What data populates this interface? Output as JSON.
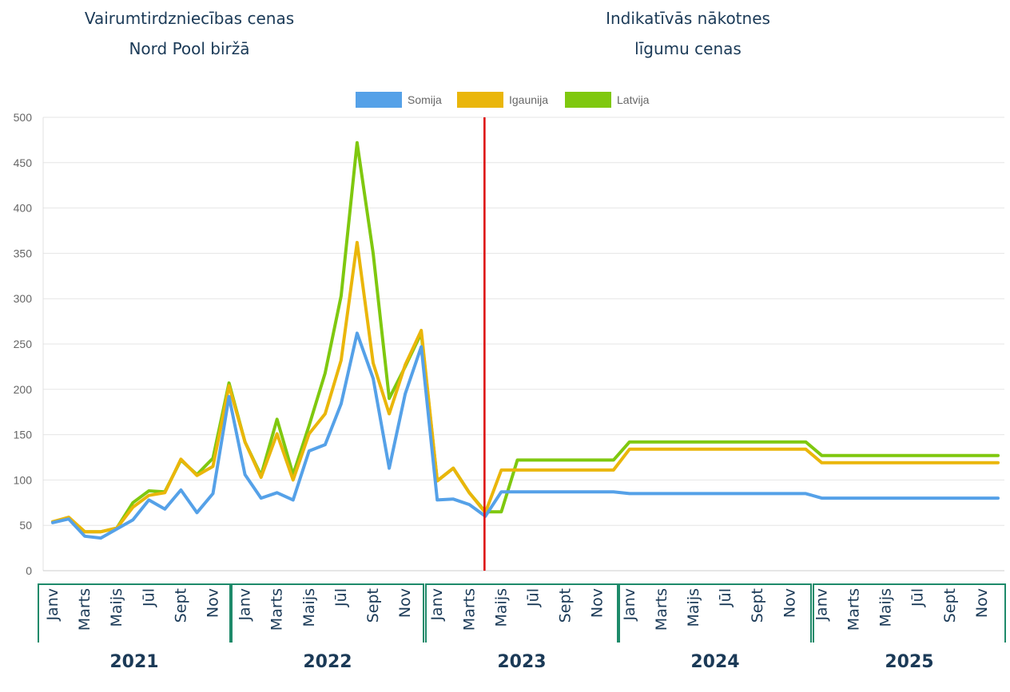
{
  "headings": {
    "left": [
      "Vairumtirdzniecības cenas",
      "Nord Pool biržā"
    ],
    "right": [
      "Indikatīvās nākotnes",
      "līgumu cenas"
    ]
  },
  "colors": {
    "Somija": "#55a1e8",
    "Igaunija": "#eab60a",
    "Latvija": "#7fc80f",
    "divider": "#dd0000",
    "year_box": "#1e8a6a",
    "grid": "#e6e6e6",
    "text_dark": "#1b3a57"
  },
  "chart_data": {
    "type": "line",
    "legend_position": "top-center",
    "grid": true,
    "ylim": [
      0,
      500
    ],
    "y_ticks": [
      0,
      50,
      100,
      150,
      200,
      250,
      300,
      350,
      400,
      450,
      500
    ],
    "month_tick_labels": [
      "Janv",
      "Marts",
      "Maijs",
      "Jūl",
      "Sept",
      "Nov"
    ],
    "years": [
      "2021",
      "2022",
      "2023",
      "2024",
      "2025"
    ],
    "divider_at": "2023-04",
    "x": [
      "2021-01",
      "2021-02",
      "2021-03",
      "2021-04",
      "2021-05",
      "2021-06",
      "2021-07",
      "2021-08",
      "2021-09",
      "2021-10",
      "2021-11",
      "2021-12",
      "2022-01",
      "2022-02",
      "2022-03",
      "2022-04",
      "2022-05",
      "2022-06",
      "2022-07",
      "2022-08",
      "2022-09",
      "2022-10",
      "2022-11",
      "2022-12",
      "2023-01",
      "2023-02",
      "2023-03",
      "2023-04",
      "2023-05",
      "2023-06",
      "2023-07",
      "2023-08",
      "2023-09",
      "2023-10",
      "2023-11",
      "2023-12",
      "2024-01",
      "2024-02",
      "2024-03",
      "2024-04",
      "2024-05",
      "2024-06",
      "2024-07",
      "2024-08",
      "2024-09",
      "2024-10",
      "2024-11",
      "2024-12",
      "2025-01",
      "2025-02",
      "2025-03",
      "2025-04",
      "2025-05",
      "2025-06",
      "2025-07",
      "2025-08",
      "2025-09",
      "2025-10",
      "2025-11",
      "2025-12"
    ],
    "series": [
      {
        "name": "Somija",
        "values": [
          53,
          57,
          38,
          36,
          46,
          56,
          78,
          68,
          89,
          64,
          85,
          192,
          106,
          80,
          86,
          78,
          132,
          139,
          184,
          262,
          212,
          113,
          195,
          247,
          78,
          79,
          73,
          60,
          87,
          87,
          87,
          87,
          87,
          87,
          87,
          87,
          85,
          85,
          85,
          85,
          85,
          85,
          85,
          85,
          85,
          85,
          85,
          85,
          80,
          80,
          80,
          80,
          80,
          80,
          80,
          80,
          80,
          80,
          80,
          80
        ]
      },
      {
        "name": "Igaunija",
        "values": [
          54,
          59,
          43,
          43,
          47,
          70,
          83,
          86,
          123,
          105,
          115,
          204,
          142,
          103,
          151,
          100,
          151,
          173,
          232,
          362,
          229,
          173,
          227,
          265,
          99,
          113,
          86,
          64,
          111,
          111,
          111,
          111,
          111,
          111,
          111,
          111,
          134,
          134,
          134,
          134,
          134,
          134,
          134,
          134,
          134,
          134,
          134,
          134,
          119,
          119,
          119,
          119,
          119,
          119,
          119,
          119,
          119,
          119,
          119,
          119
        ]
      },
      {
        "name": "Latvija",
        "values": [
          54,
          58,
          43,
          43,
          47,
          75,
          88,
          87,
          122,
          106,
          124,
          207,
          142,
          105,
          167,
          106,
          160,
          218,
          303,
          472,
          350,
          190,
          225,
          262,
          99,
          113,
          86,
          65,
          65,
          122,
          122,
          122,
          122,
          122,
          122,
          122,
          142,
          142,
          142,
          142,
          142,
          142,
          142,
          142,
          142,
          142,
          142,
          142,
          127,
          127,
          127,
          127,
          127,
          127,
          127,
          127,
          127,
          127,
          127,
          127
        ]
      }
    ]
  }
}
